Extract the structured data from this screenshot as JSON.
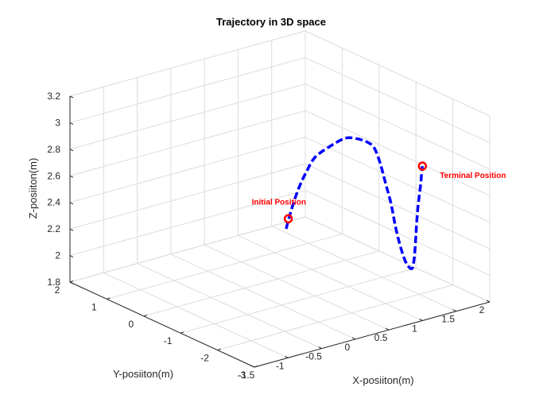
{
  "chart_data": {
    "type": "line",
    "title": "Trajectory in 3D space",
    "xlabel": "X-posiiton(m)",
    "ylabel": "Y-posiiton(m)",
    "zlabel": "Z-posiiton(m)",
    "xlim": [
      -1.5,
      2
    ],
    "ylim": [
      -3,
      2
    ],
    "zlim": [
      1.8,
      3.2
    ],
    "xticks": [
      "-1.5",
      "-1",
      "-0.5",
      "0",
      "0.5",
      "1",
      "1.5",
      "2"
    ],
    "yticks": [
      "-3",
      "-2",
      "-1",
      "0",
      "1",
      "2"
    ],
    "zticks": [
      "1.8",
      "2",
      "2.2",
      "2.4",
      "2.6",
      "2.8",
      "3",
      "3.2"
    ],
    "grid": true,
    "line_color": "#0000ff",
    "line_style": "dashed",
    "marker_color": "#ff0000",
    "series": [
      {
        "points": [
          [
            1.26,
            1.17,
            1.92
          ],
          [
            1.27,
            1.1,
            2.02
          ],
          [
            1.28,
            1.0,
            2.14
          ],
          [
            1.29,
            0.87,
            2.27
          ],
          [
            1.3,
            0.7,
            2.4
          ],
          [
            1.31,
            0.48,
            2.54
          ],
          [
            1.33,
            0.1,
            2.67
          ],
          [
            1.35,
            -0.25,
            2.77
          ],
          [
            1.37,
            -0.5,
            2.8
          ],
          [
            1.38,
            -0.8,
            2.81
          ],
          [
            1.38,
            -1.0,
            2.79
          ],
          [
            1.36,
            -1.2,
            2.7
          ],
          [
            1.33,
            -1.4,
            2.58
          ],
          [
            1.3,
            -1.6,
            2.46
          ],
          [
            1.26,
            -1.8,
            2.31
          ],
          [
            1.23,
            -2.0,
            2.18
          ],
          [
            1.2,
            -2.2,
            2.1
          ],
          [
            1.17,
            -2.4,
            2.09
          ],
          [
            1.12,
            -2.55,
            2.18
          ],
          [
            1.06,
            -2.7,
            2.34
          ],
          [
            1.0,
            -2.85,
            2.55
          ],
          [
            0.97,
            -2.95,
            2.7
          ],
          [
            0.94,
            -3.06,
            2.84
          ],
          [
            0.92,
            -3.12,
            2.93
          ],
          [
            0.9,
            -3.18,
            3.0
          ]
        ]
      }
    ],
    "annotations": [
      {
        "text": "Initial Position",
        "point": [
          1.27,
          1.13,
          2.0
        ]
      },
      {
        "text": "Terminal Position",
        "point": [
          0.9,
          -3.18,
          3.0
        ]
      }
    ]
  }
}
